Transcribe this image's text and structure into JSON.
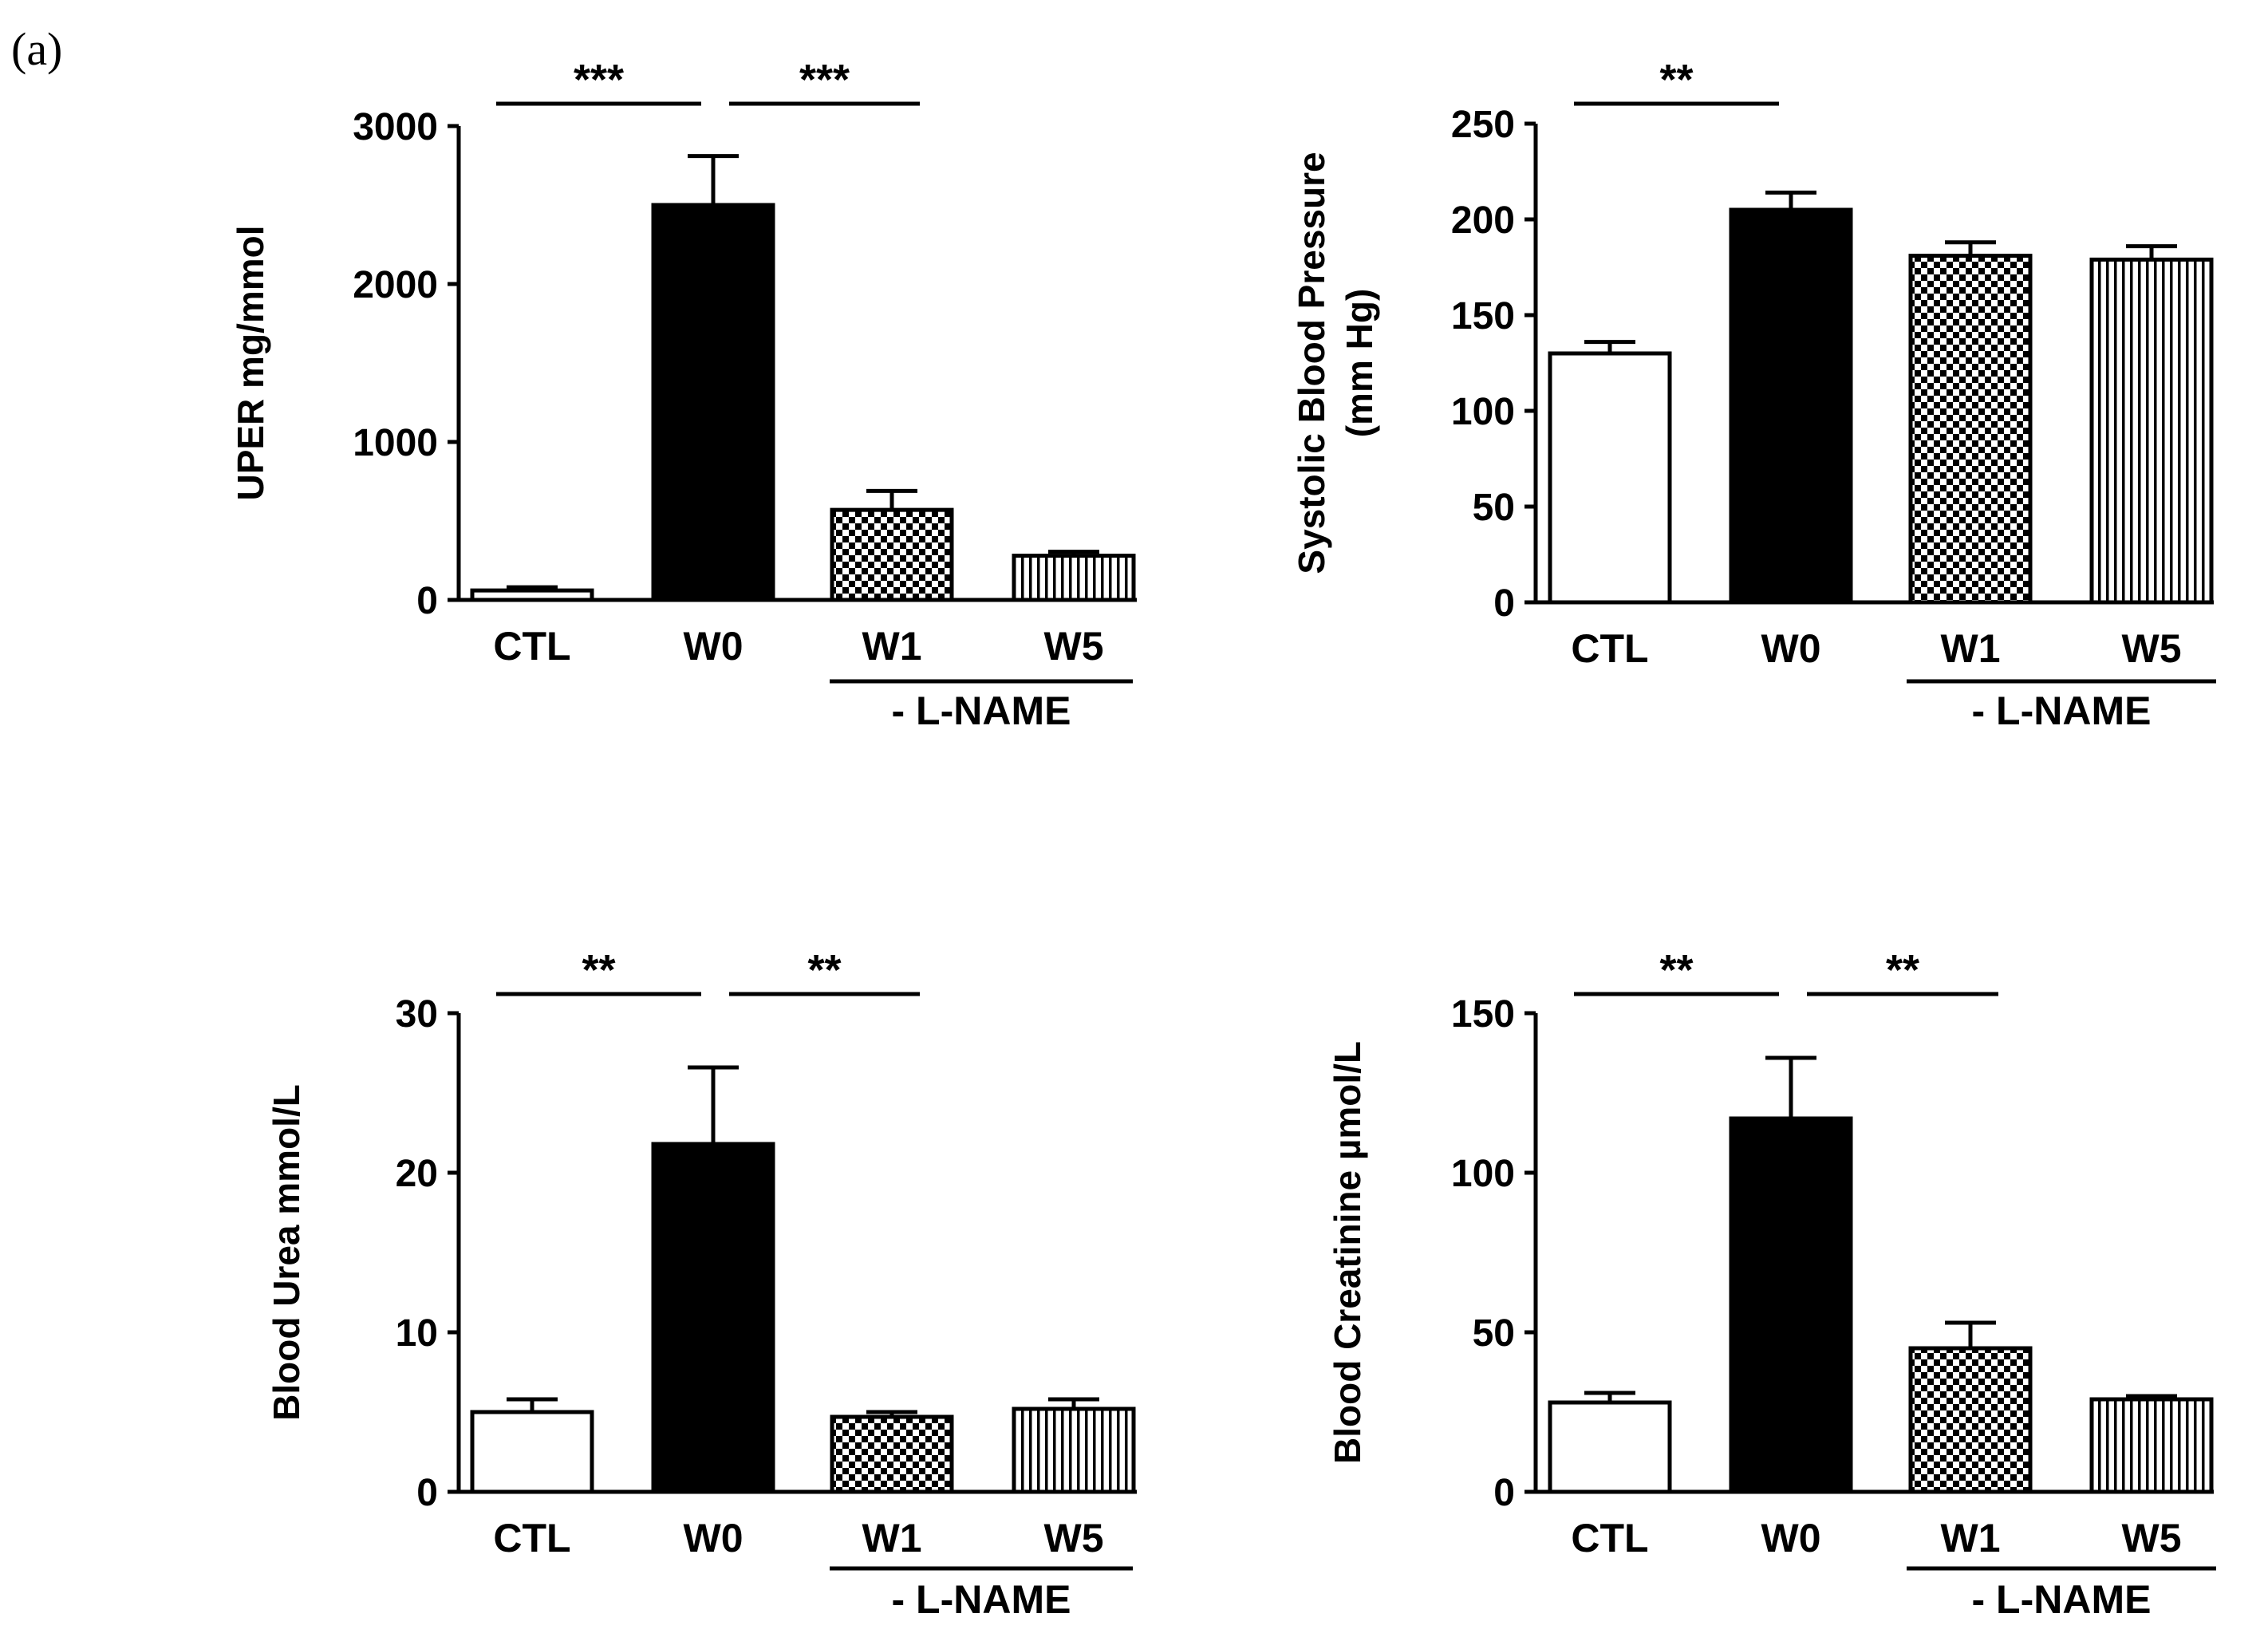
{
  "panel_label": "(a)",
  "colors": {
    "ink": "#000000",
    "background": "#ffffff"
  },
  "chart_data": [
    {
      "type": "bar",
      "id": "uper",
      "ylabel": "UPER mg/mmol",
      "ylim": [
        0,
        3000
      ],
      "yticks": [
        0,
        1000,
        2000,
        3000
      ],
      "categories": [
        "CTL",
        "W0",
        "W1",
        "W5"
      ],
      "values": [
        60,
        2500,
        570,
        280
      ],
      "errors": [
        20,
        310,
        120,
        25
      ],
      "fills": [
        "white",
        "black",
        "checker",
        "vstripe"
      ],
      "group_label": "- L-NAME",
      "significance": [
        {
          "from": 0,
          "to": 1,
          "label": "***"
        },
        {
          "from": 1,
          "to": 2,
          "label": "***"
        }
      ]
    },
    {
      "type": "bar",
      "id": "sbp",
      "ylabel": [
        "Systolic Blood Pressure",
        "(mm Hg)"
      ],
      "ylim": [
        0,
        250
      ],
      "yticks": [
        0,
        50,
        100,
        150,
        200,
        250
      ],
      "categories": [
        "CTL",
        "W0",
        "W1",
        "W5"
      ],
      "values": [
        130,
        205,
        181,
        179
      ],
      "errors": [
        6,
        9,
        7,
        7
      ],
      "fills": [
        "white",
        "black",
        "checker",
        "vstripe"
      ],
      "group_label": "- L-NAME",
      "significance": [
        {
          "from": 0,
          "to": 1,
          "label": "**"
        }
      ]
    },
    {
      "type": "bar",
      "id": "urea",
      "ylabel": "Blood Urea mmol/L",
      "ylim": [
        0,
        30
      ],
      "yticks": [
        0,
        10,
        20,
        30
      ],
      "categories": [
        "CTL",
        "W0",
        "W1",
        "W5"
      ],
      "values": [
        5.0,
        21.8,
        4.7,
        5.2
      ],
      "errors": [
        0.8,
        4.8,
        0.3,
        0.6
      ],
      "fills": [
        "white",
        "black",
        "checker",
        "vstripe"
      ],
      "group_label": "- L-NAME",
      "significance": [
        {
          "from": 0,
          "to": 1,
          "label": "**"
        },
        {
          "from": 1,
          "to": 2,
          "label": "**"
        }
      ]
    },
    {
      "type": "bar",
      "id": "creatinine",
      "ylabel": "Blood Creatinine µmol/L",
      "ylim": [
        0,
        150
      ],
      "yticks": [
        0,
        50,
        100,
        150
      ],
      "categories": [
        "CTL",
        "W0",
        "W1",
        "W5"
      ],
      "values": [
        28,
        117,
        45,
        29
      ],
      "errors": [
        3,
        19,
        8,
        1
      ],
      "fills": [
        "white",
        "black",
        "checker",
        "vstripe"
      ],
      "group_label": "- L-NAME",
      "significance": [
        {
          "from": 0,
          "to": 1,
          "label": "**"
        },
        {
          "from": 1,
          "to": 2,
          "label": "**"
        }
      ]
    }
  ]
}
